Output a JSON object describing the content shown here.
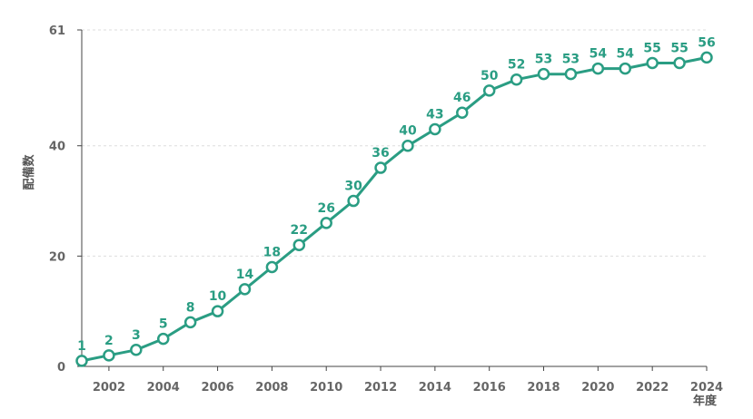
{
  "chart_data": {
    "type": "line",
    "ylabel": "配備数",
    "xlabel": "年度",
    "x": [
      2001,
      2002,
      2003,
      2004,
      2005,
      2006,
      2007,
      2008,
      2009,
      2010,
      2011,
      2012,
      2013,
      2014,
      2015,
      2016,
      2017,
      2018,
      2019,
      2020,
      2021,
      2022,
      2023,
      2024
    ],
    "series": [
      {
        "values": [
          1,
          2,
          3,
          5,
          8,
          10,
          14,
          18,
          22,
          26,
          30,
          36,
          40,
          43,
          46,
          50,
          52,
          53,
          53,
          54,
          54,
          55,
          55,
          56
        ],
        "data_labels": [
          "1",
          "2",
          "3",
          "5",
          "8",
          "10",
          "14",
          "18",
          "22",
          "26",
          "30",
          "36",
          "40",
          "43",
          "46",
          "50",
          "52",
          "53",
          "53",
          "54",
          "54",
          "55",
          "55",
          "56"
        ],
        "color": "#2a9d83"
      }
    ],
    "y_ticks": [
      0,
      20,
      40,
      61
    ],
    "y_tick_labels": [
      "0",
      "20",
      "40",
      "61"
    ],
    "x_ticks": [
      2002,
      2004,
      2006,
      2008,
      2010,
      2012,
      2014,
      2016,
      2018,
      2020,
      2022,
      2024
    ],
    "x_tick_labels": [
      "2002",
      "2004",
      "2006",
      "2008",
      "2010",
      "2012",
      "2014",
      "2016",
      "2018",
      "2020",
      "2022",
      "2024"
    ],
    "xlim": [
      2001,
      2024
    ],
    "ylim": [
      0,
      61
    ],
    "grid": "horizontal-dashed",
    "legend": "none"
  },
  "colors": {
    "line": "#2a9d83",
    "marker_fill": "#ffffff",
    "axis": "#444444",
    "grid": "#dddddd",
    "tick_text": "#666666"
  }
}
